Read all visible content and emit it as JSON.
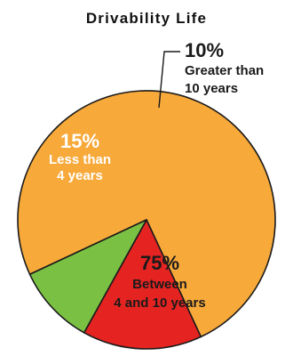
{
  "chart_data": {
    "type": "pie",
    "title": "Drivability Life",
    "slices": [
      {
        "label_pct": "75%",
        "label_lines": [
          "Between",
          "4 and 10 years"
        ],
        "value": 75,
        "color": "#f7a93a"
      },
      {
        "label_pct": "15%",
        "label_lines": [
          "Less than",
          "4 years"
        ],
        "value": 15,
        "color": "#e52421"
      },
      {
        "label_pct": "10%",
        "label_lines": [
          "Greater than",
          "10 years"
        ],
        "value": 10,
        "color": "#7ac143"
      }
    ],
    "stroke_color": "#1a1a1a",
    "label_colors": {
      "dark": "#1a1a1a",
      "light": "#ffffff"
    }
  }
}
